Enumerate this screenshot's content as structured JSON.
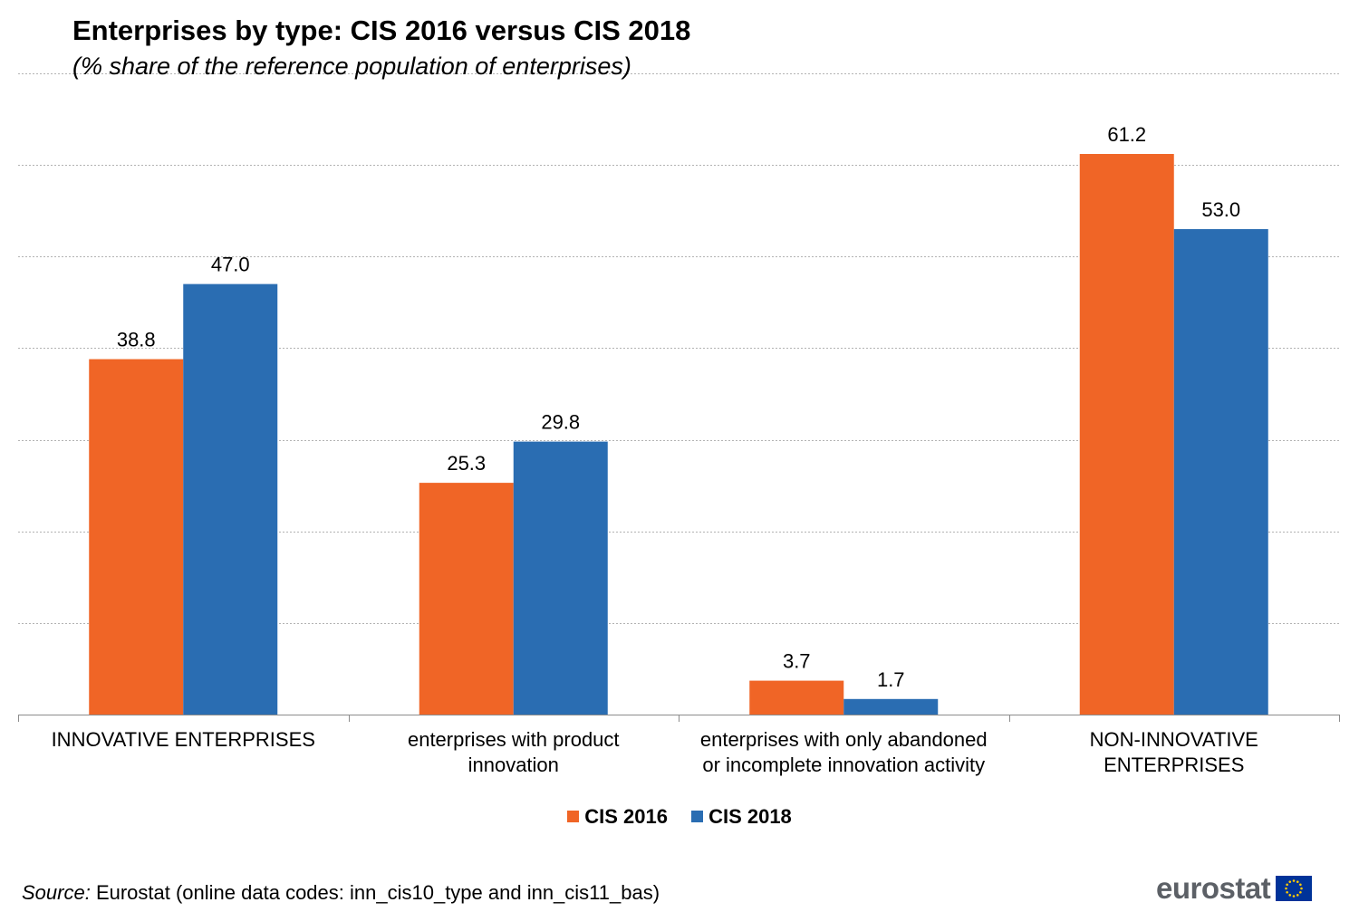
{
  "chart_data": {
    "type": "bar",
    "title": "Enterprises by type: CIS 2016 versus CIS 2018",
    "subtitle": "(% share of the reference population of enterprises)",
    "categories": [
      [
        "INNOVATIVE ENTERPRISES"
      ],
      [
        "enterprises with product",
        "innovation"
      ],
      [
        "enterprises with only abandoned",
        "or incomplete innovation activity"
      ],
      [
        "NON-INNOVATIVE",
        "ENTERPRISES"
      ]
    ],
    "series": [
      {
        "name": "CIS 2016",
        "color": "#f06526",
        "values": [
          38.8,
          25.3,
          3.7,
          61.2
        ],
        "labels": [
          "38.8",
          "25.3",
          "3.7",
          "61.2"
        ]
      },
      {
        "name": "CIS 2018",
        "color": "#2a6db2",
        "values": [
          47.0,
          29.8,
          1.7,
          53.0
        ],
        "labels": [
          "47.0",
          "29.8",
          "1.7",
          "53.0"
        ]
      }
    ],
    "ylim": [
      0,
      70
    ],
    "ytick_step": 10,
    "grid": true,
    "legend": "bottom-center"
  },
  "source": {
    "label": "Source:",
    "text": " Eurostat (online data codes: inn_cis10_type and inn_cis11_bas)"
  },
  "logo": {
    "text": "eurostat",
    "flag_blue": "#003399",
    "flag_star": "#ffcc00"
  }
}
